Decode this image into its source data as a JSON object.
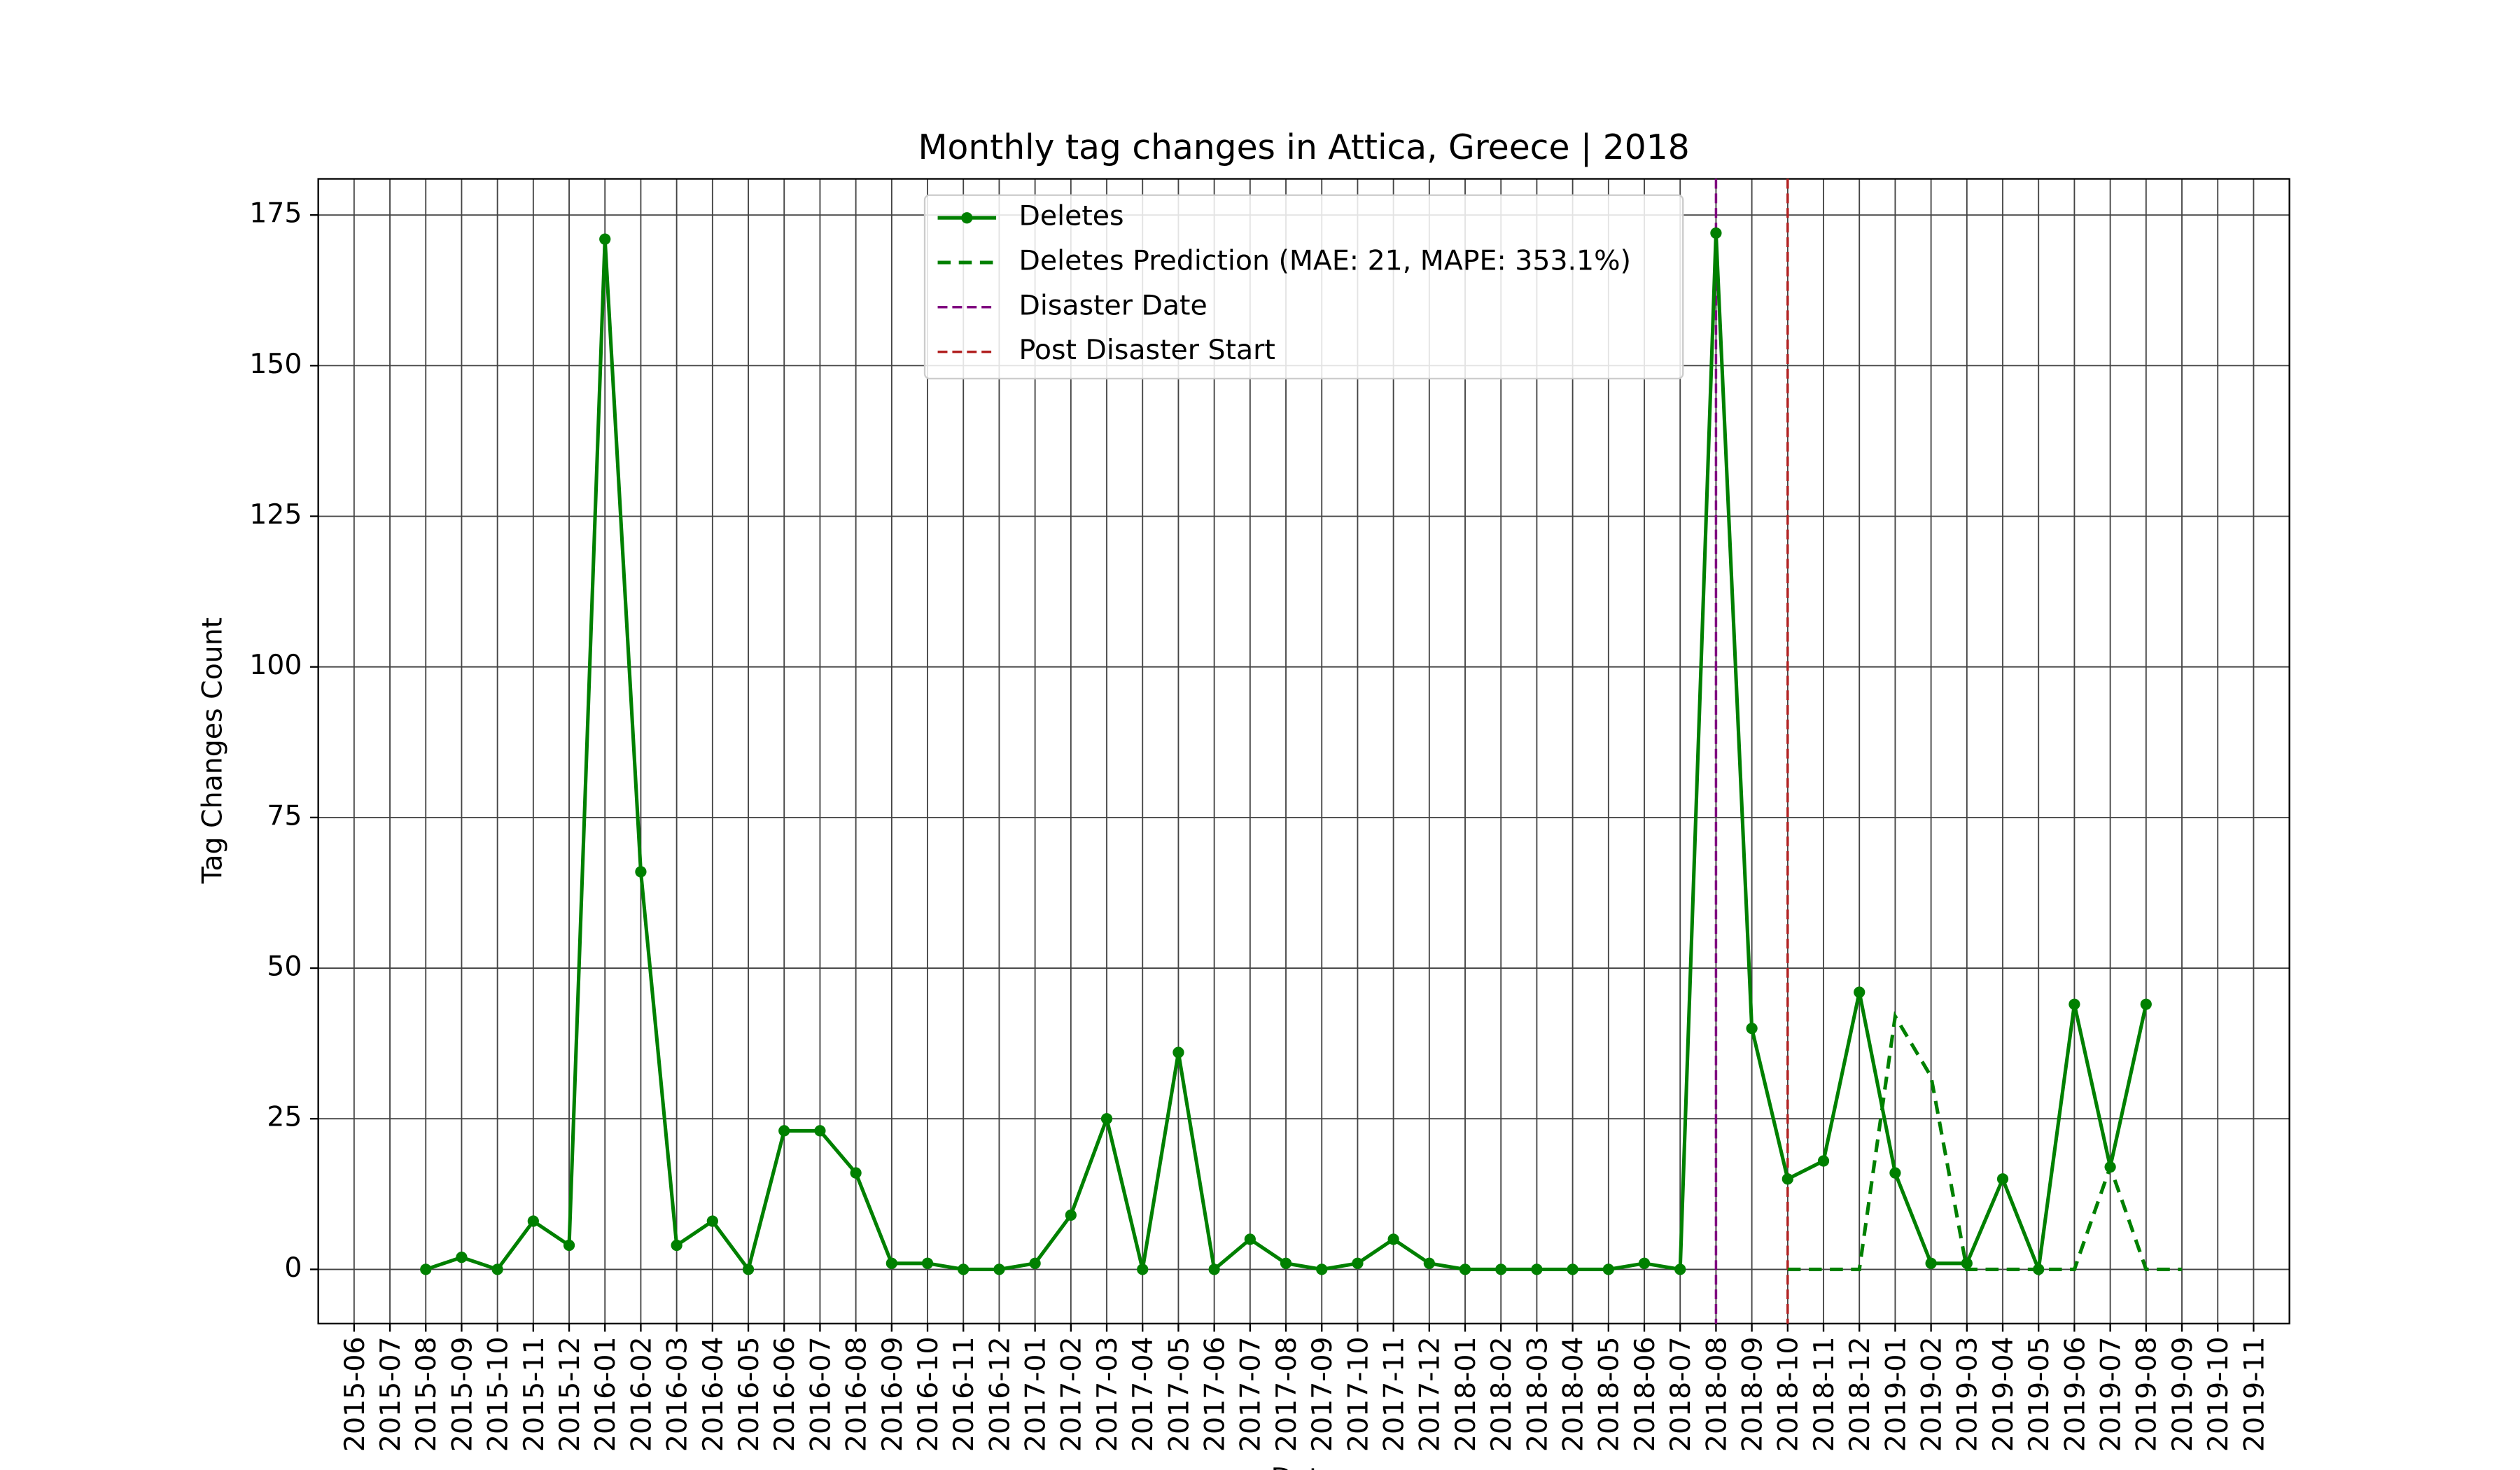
{
  "chart_data": {
    "type": "line",
    "title": "Monthly tag changes in Attica, Greece | 2018",
    "x_label": "Date",
    "y_label": "Tag Changes Count",
    "xlim": [
      "2015-05",
      "2019-12"
    ],
    "xticks": [
      "2015-06",
      "2015-07",
      "2015-08",
      "2015-09",
      "2015-10",
      "2015-11",
      "2015-12",
      "2016-01",
      "2016-02",
      "2016-03",
      "2016-04",
      "2016-05",
      "2016-06",
      "2016-07",
      "2016-08",
      "2016-09",
      "2016-10",
      "2016-11",
      "2016-12",
      "2017-01",
      "2017-02",
      "2017-03",
      "2017-04",
      "2017-05",
      "2017-06",
      "2017-07",
      "2017-08",
      "2017-09",
      "2017-10",
      "2017-11",
      "2017-12",
      "2018-01",
      "2018-02",
      "2018-03",
      "2018-04",
      "2018-05",
      "2018-06",
      "2018-07",
      "2018-08",
      "2018-09",
      "2018-10",
      "2018-11",
      "2018-12",
      "2019-01",
      "2019-02",
      "2019-03",
      "2019-04",
      "2019-05",
      "2019-06",
      "2019-07",
      "2019-08",
      "2019-09",
      "2019-10",
      "2019-11"
    ],
    "ylim": [
      -9,
      181
    ],
    "yticks": [
      0,
      25,
      50,
      75,
      100,
      125,
      150,
      175
    ],
    "grid": true,
    "legend": "upper center",
    "series": [
      {
        "name": "Deletes",
        "color": "#008000",
        "style": "solid",
        "marker": true,
        "x": [
          "2015-08",
          "2015-09",
          "2015-10",
          "2015-11",
          "2015-12",
          "2016-01",
          "2016-02",
          "2016-03",
          "2016-04",
          "2016-05",
          "2016-06",
          "2016-07",
          "2016-08",
          "2016-09",
          "2016-10",
          "2016-11",
          "2016-12",
          "2017-01",
          "2017-02",
          "2017-03",
          "2017-04",
          "2017-05",
          "2017-06",
          "2017-07",
          "2017-08",
          "2017-09",
          "2017-10",
          "2017-11",
          "2017-12",
          "2018-01",
          "2018-02",
          "2018-03",
          "2018-04",
          "2018-05",
          "2018-06",
          "2018-07",
          "2018-08",
          "2018-09",
          "2018-10",
          "2018-11",
          "2018-12",
          "2019-01",
          "2019-02",
          "2019-03",
          "2019-04",
          "2019-05",
          "2019-06",
          "2019-07",
          "2019-08"
        ],
        "values": [
          0,
          2,
          0,
          8,
          4,
          171,
          66,
          4,
          8,
          0,
          23,
          23,
          16,
          1,
          1,
          0,
          0,
          1,
          9,
          25,
          0,
          36,
          0,
          5,
          1,
          0,
          1,
          5,
          1,
          0,
          0,
          0,
          0,
          0,
          1,
          0,
          172,
          40,
          15,
          18,
          46,
          16,
          1,
          1,
          15,
          0,
          44,
          17,
          44
        ]
      },
      {
        "name": "Deletes Prediction (MAE: 21, MAPE: 353.1%)",
        "color": "#008000",
        "style": "dashed",
        "marker": false,
        "x": [
          "2018-10",
          "2018-11",
          "2018-12",
          "2019-01",
          "2019-02",
          "2019-03",
          "2019-04",
          "2019-05",
          "2019-06",
          "2019-07",
          "2019-08",
          "2019-09"
        ],
        "values": [
          0,
          0,
          0,
          42,
          32,
          0,
          0,
          0,
          0,
          17,
          0,
          0
        ]
      }
    ],
    "vlines": [
      {
        "name": "Disaster Date",
        "x": "2018-08",
        "color": "#800080"
      },
      {
        "name": "Post Disaster Start",
        "x": "2018-10",
        "color": "#b22222"
      }
    ]
  }
}
